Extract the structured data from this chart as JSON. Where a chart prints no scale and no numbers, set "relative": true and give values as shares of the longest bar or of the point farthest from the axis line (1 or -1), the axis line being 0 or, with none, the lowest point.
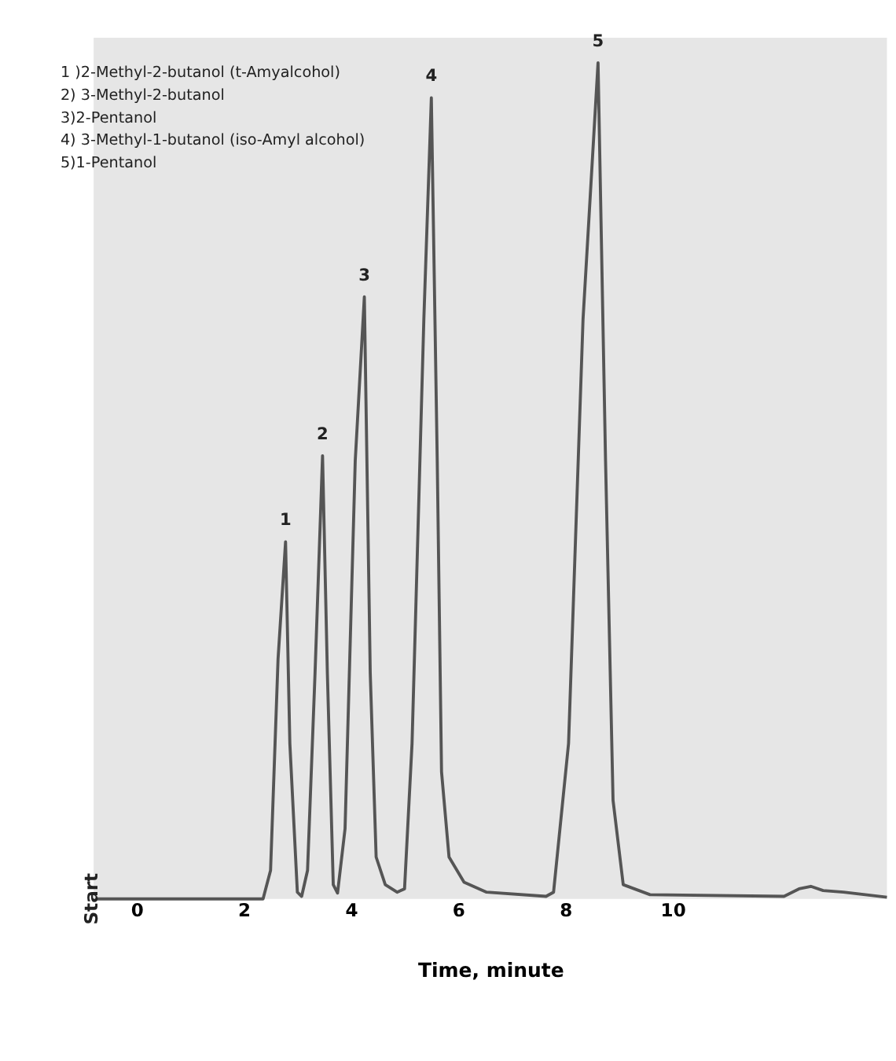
{
  "chart_data": {
    "type": "line",
    "relative": true,
    "xlabel": "Time, minute",
    "xlim": [
      -0.8,
      14
    ],
    "xticks": [
      0,
      2,
      4,
      6,
      8,
      10
    ],
    "grid": false,
    "marker": "none",
    "line_style": "solid",
    "x": [
      -0.75,
      2.36,
      2.5,
      2.64,
      2.78,
      2.86,
      3.0,
      3.08,
      3.19,
      3.33,
      3.47,
      3.56,
      3.67,
      3.75,
      3.89,
      4.08,
      4.25,
      4.36,
      4.47,
      4.64,
      4.86,
      5.0,
      5.14,
      5.36,
      5.5,
      5.61,
      5.69,
      5.83,
      6.11,
      6.53,
      7.64,
      7.78,
      8.06,
      8.33,
      8.61,
      8.75,
      8.89,
      9.08,
      9.58,
      12.08,
      12.36,
      12.58,
      12.81,
      13.19,
      14.0
    ],
    "series": [
      {
        "color": "#555555",
        "values": [
          0,
          0,
          0.034,
          0.287,
          0.427,
          0.186,
          0.008,
          0.003,
          0.034,
          0.27,
          0.53,
          0.27,
          0.017,
          0.007,
          0.084,
          0.524,
          0.72,
          0.27,
          0.05,
          0.017,
          0.008,
          0.012,
          0.186,
          0.693,
          0.958,
          0.524,
          0.152,
          0.05,
          0.02,
          0.008,
          0.003,
          0.008,
          0.186,
          0.693,
          1.0,
          0.524,
          0.118,
          0.017,
          0.005,
          0.003,
          0.012,
          0.015,
          0.01,
          0.008,
          0.002
        ]
      }
    ],
    "annotations": [
      "1 )2-Methyl-2-butanol (t-Amyalcohol)",
      "2) 3-Methyl-2-butanol",
      "3)2-Pentanol",
      "4) 3-Methyl-1-butanol (iso-Amyl alcohol)",
      "5)1-Pentanol",
      {
        "text": "1",
        "x": 2.78,
        "y": 0.427
      },
      {
        "text": "2",
        "x": 3.47,
        "y": 0.53
      },
      {
        "text": "3",
        "x": 4.25,
        "y": 0.72
      },
      {
        "text": "4",
        "x": 5.5,
        "y": 0.958
      },
      {
        "text": "5",
        "x": 8.61,
        "y": 1.0
      },
      {
        "text": "Start",
        "x": 0,
        "y": 0
      }
    ]
  }
}
